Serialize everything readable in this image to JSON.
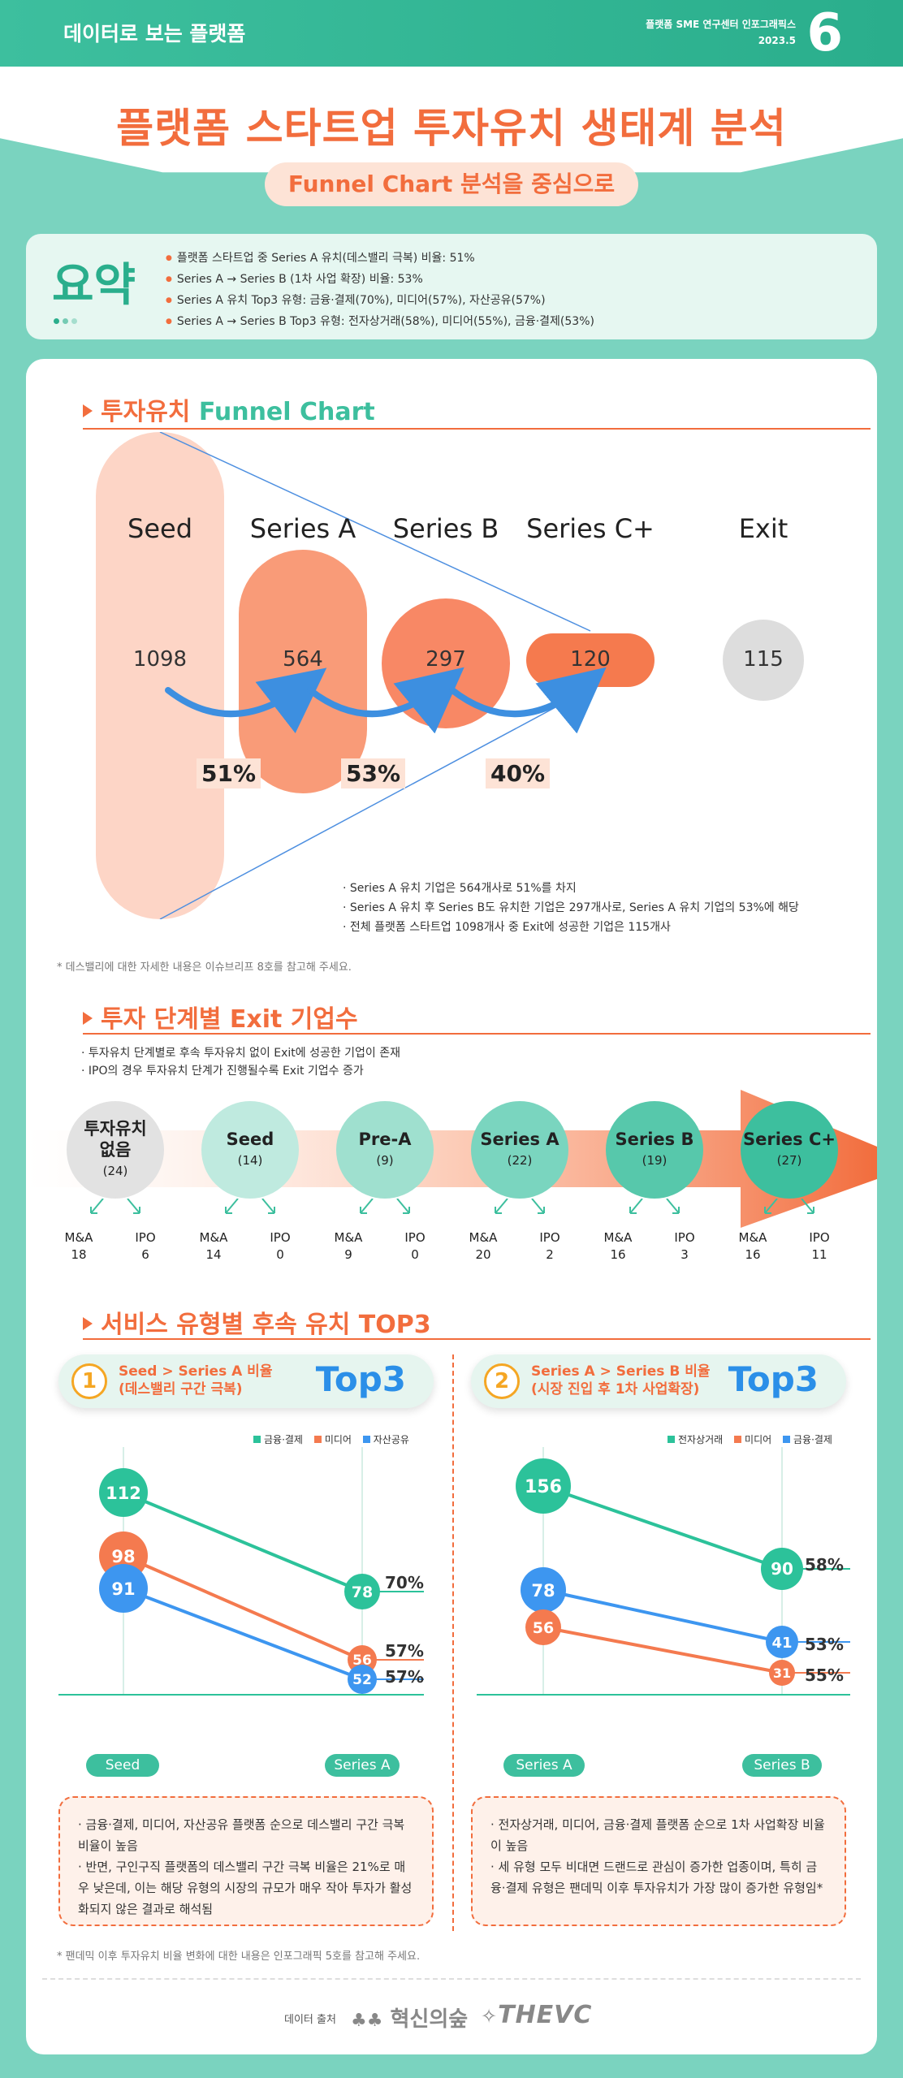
{
  "header": {
    "series": "데이터로 보는 플랫폼",
    "org": "플랫폼 SME 연구센터 인포그래픽스",
    "date": "2023.5",
    "issue": "6"
  },
  "title": "플랫폼 스타트업 투자유치 생태계 분석",
  "subtitle": "Funnel Chart 분석을 중심으로",
  "summary": {
    "label": "요약",
    "items": [
      "플랫폼 스타트업 중 Series A 유치(데스밸리 극복) 비율: 51%",
      "Series A → Series B (1차 사업 확장) 비율: 53%",
      "Series A 유치 Top3 유형: 금융·결제(70%), 미디어(57%), 자산공유(57%)",
      "Series A → Series B Top3 유형: 전자상거래(58%), 미디어(55%), 금융·결제(53%)"
    ]
  },
  "funnel": {
    "heading_ko": "투자유치",
    "heading_en": "Funnel Chart",
    "stages": [
      {
        "name": "Seed",
        "value": "1098"
      },
      {
        "name": "Series A",
        "value": "564"
      },
      {
        "name": "Series B",
        "value": "297"
      },
      {
        "name": "Series C+",
        "value": "120"
      },
      {
        "name": "Exit",
        "value": "115"
      }
    ],
    "rates": [
      "51%",
      "53%",
      "40%"
    ],
    "notes": [
      "Series A 유치 기업은 564개사로 51%를 차지",
      "Series A 유치 후 Series B도 유치한 기업은 297개사로, Series A 유치 기업의 53%에 해당",
      "전체 플랫폼 스타트업 1098개사 중 Exit에 성공한 기업은 115개사"
    ],
    "footnote": "* 데스밸리에 대한 자세한 내용은 이슈브리프 8호를 참고해 주세요.",
    "colors": {
      "seed": "#fdd5c6",
      "a": "#f99b78",
      "b": "#f88865",
      "c": "#f57a4e",
      "exit": "#dddddd"
    }
  },
  "exit": {
    "heading": "투자 단계별 Exit 기업수",
    "notes": [
      "투자유치 단계별로 후속 투자유치 없이 Exit에 성공한 기업이 존재",
      "IPO의 경우 투자유치 단계가 진행될수록 Exit 기업수 증가"
    ],
    "ma_label": "M&A",
    "ipo_label": "IPO",
    "stages": [
      {
        "name": "투자유치 없음",
        "count": "(24)",
        "ma": "18",
        "ipo": "6",
        "color": "#e2e2e2"
      },
      {
        "name": "Seed",
        "count": "(14)",
        "ma": "14",
        "ipo": "0",
        "color": "#bfeadf"
      },
      {
        "name": "Pre-A",
        "count": "(9)",
        "ma": "9",
        "ipo": "0",
        "color": "#9fe0cf"
      },
      {
        "name": "Series A",
        "count": "(22)",
        "ma": "20",
        "ipo": "2",
        "color": "#7ad5bf"
      },
      {
        "name": "Series B",
        "count": "(19)",
        "ma": "16",
        "ipo": "3",
        "color": "#57c8ab"
      },
      {
        "name": "Series C+",
        "count": "(27)",
        "ma": "16",
        "ipo": "11",
        "color": "#3dbf9e"
      }
    ]
  },
  "top3": {
    "heading": "서비스 유형별 후속 유치 TOP3",
    "panels": [
      {
        "num": "1",
        "title1": "Seed > Series A 비율",
        "title2": "(데스밸리 구간 극복)",
        "badge": "Top3",
        "legend": [
          "금융·결제",
          "미디어",
          "자산공유"
        ],
        "x": [
          "Seed",
          "Series A"
        ],
        "lines": [
          {
            "name": "금융·결제",
            "start": "112",
            "end": "78",
            "pct": "70%",
            "color": "#2cc29a"
          },
          {
            "name": "미디어",
            "start": "98",
            "end": "56",
            "pct": "57%",
            "color": "#f47a4f"
          },
          {
            "name": "자산공유",
            "start": "91",
            "end": "52",
            "pct": "57%",
            "color": "#3d96f0"
          }
        ],
        "notes": [
          "금융·결제, 미디어, 자산공유 플랫폼 순으로 데스밸리 구간 극복 비율이 높음",
          "반면, 구인구직 플랫폼의 데스밸리 구간 극복 비율은 21%로 매우 낮은데, 이는 해당 유형의 시장의 규모가 매우 작아 투자가 활성화되지 않은 결과로 해석됨"
        ]
      },
      {
        "num": "2",
        "title1": "Series A > Series B 비율",
        "title2": "(시장 진입 후 1차 사업확장)",
        "badge": "Top3",
        "legend": [
          "전자상거래",
          "미디어",
          "금융·결제"
        ],
        "x": [
          "Series A",
          "Series B"
        ],
        "lines": [
          {
            "name": "전자상거래",
            "start": "156",
            "end": "90",
            "pct": "58%",
            "color": "#2cc29a"
          },
          {
            "name": "금융·결제",
            "start": "78",
            "end": "41",
            "pct": "53%",
            "color": "#3d96f0"
          },
          {
            "name": "미디어",
            "start": "56",
            "end": "31",
            "pct": "55%",
            "color": "#f47a4f"
          }
        ],
        "notes": [
          "전자상거래, 미디어, 금융·결제 플랫폼 순으로 1차 사업확장 비율이 높음",
          "세 유형 모두 비대면 드랜드로 관심이 증가한 업종이며, 특히 금융·결제 유형은 팬데믹 이후 투자유치가 가장 많이 증가한 유형임*"
        ]
      }
    ],
    "footnote": "* 팬데믹 이후 투자유치 비율 변화에 대한 내용은 인포그래픽 5호를 참고해 주세요."
  },
  "source": {
    "label": "데이터 출처",
    "org1": "혁신의숲",
    "org2": "THEVC"
  }
}
